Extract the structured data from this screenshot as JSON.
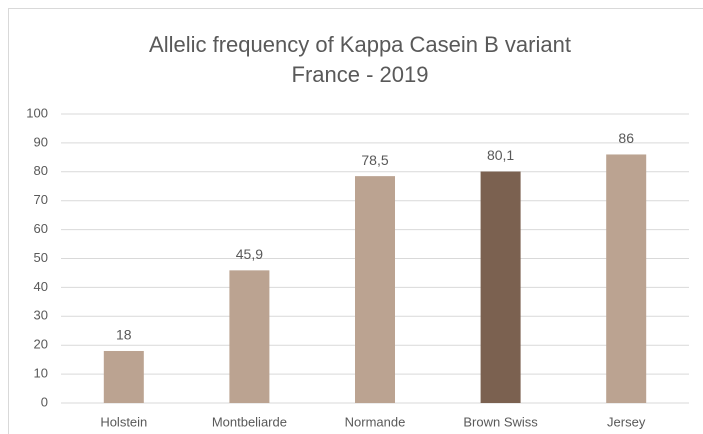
{
  "chart_data": {
    "type": "bar",
    "title": "Allelic frequency of Kappa Casein B variant",
    "subtitle": "France - 2019",
    "categories": [
      "Holstein",
      "Montbeliarde",
      "Normande",
      "Brown Swiss",
      "Jersey"
    ],
    "values": [
      18,
      45.9,
      78.5,
      80.1,
      86
    ],
    "value_labels": [
      "18",
      "45,9",
      "78,5",
      "80,1",
      "86"
    ],
    "colors": [
      "#bba391",
      "#bba391",
      "#bba391",
      "#7b6150",
      "#bba391"
    ],
    "ylim": [
      0,
      100
    ],
    "yticks": [
      0,
      10,
      20,
      30,
      40,
      50,
      60,
      70,
      80,
      90,
      100
    ],
    "grid": true
  }
}
